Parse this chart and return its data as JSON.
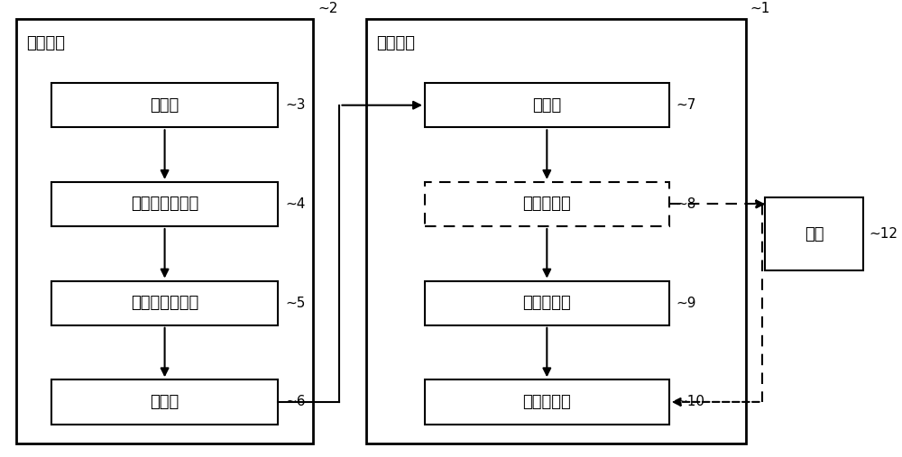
{
  "bg_color": "#ffffff",
  "text_color": "#000000",
  "font_size": 13,
  "label_font_size": 11,
  "left_panel_label": "评价车辆",
  "right_panel_label": "对象车辆",
  "cloud_label": "云端",
  "left_boxes": [
    {
      "text": "输入部",
      "num": "~3"
    },
    {
      "text": "车辆信息获取部",
      "num": "~4"
    },
    {
      "text": "评价信息输入部",
      "num": "~5"
    },
    {
      "text": "送信部",
      "num": "~6"
    }
  ],
  "right_boxes": [
    {
      "text": "收信部",
      "num": "~7",
      "dashed": false
    },
    {
      "text": "信息判断部",
      "num": "~8",
      "dashed": true
    },
    {
      "text": "信息存储部",
      "num": "~9",
      "dashed": false
    },
    {
      "text": "信息通知部",
      "num": "~10",
      "dashed": false
    }
  ],
  "num_left_panel": "~2",
  "num_right_panel": "~1",
  "num_cloud": "~12",
  "figsize": [
    10.0,
    5.07
  ],
  "dpi": 100
}
